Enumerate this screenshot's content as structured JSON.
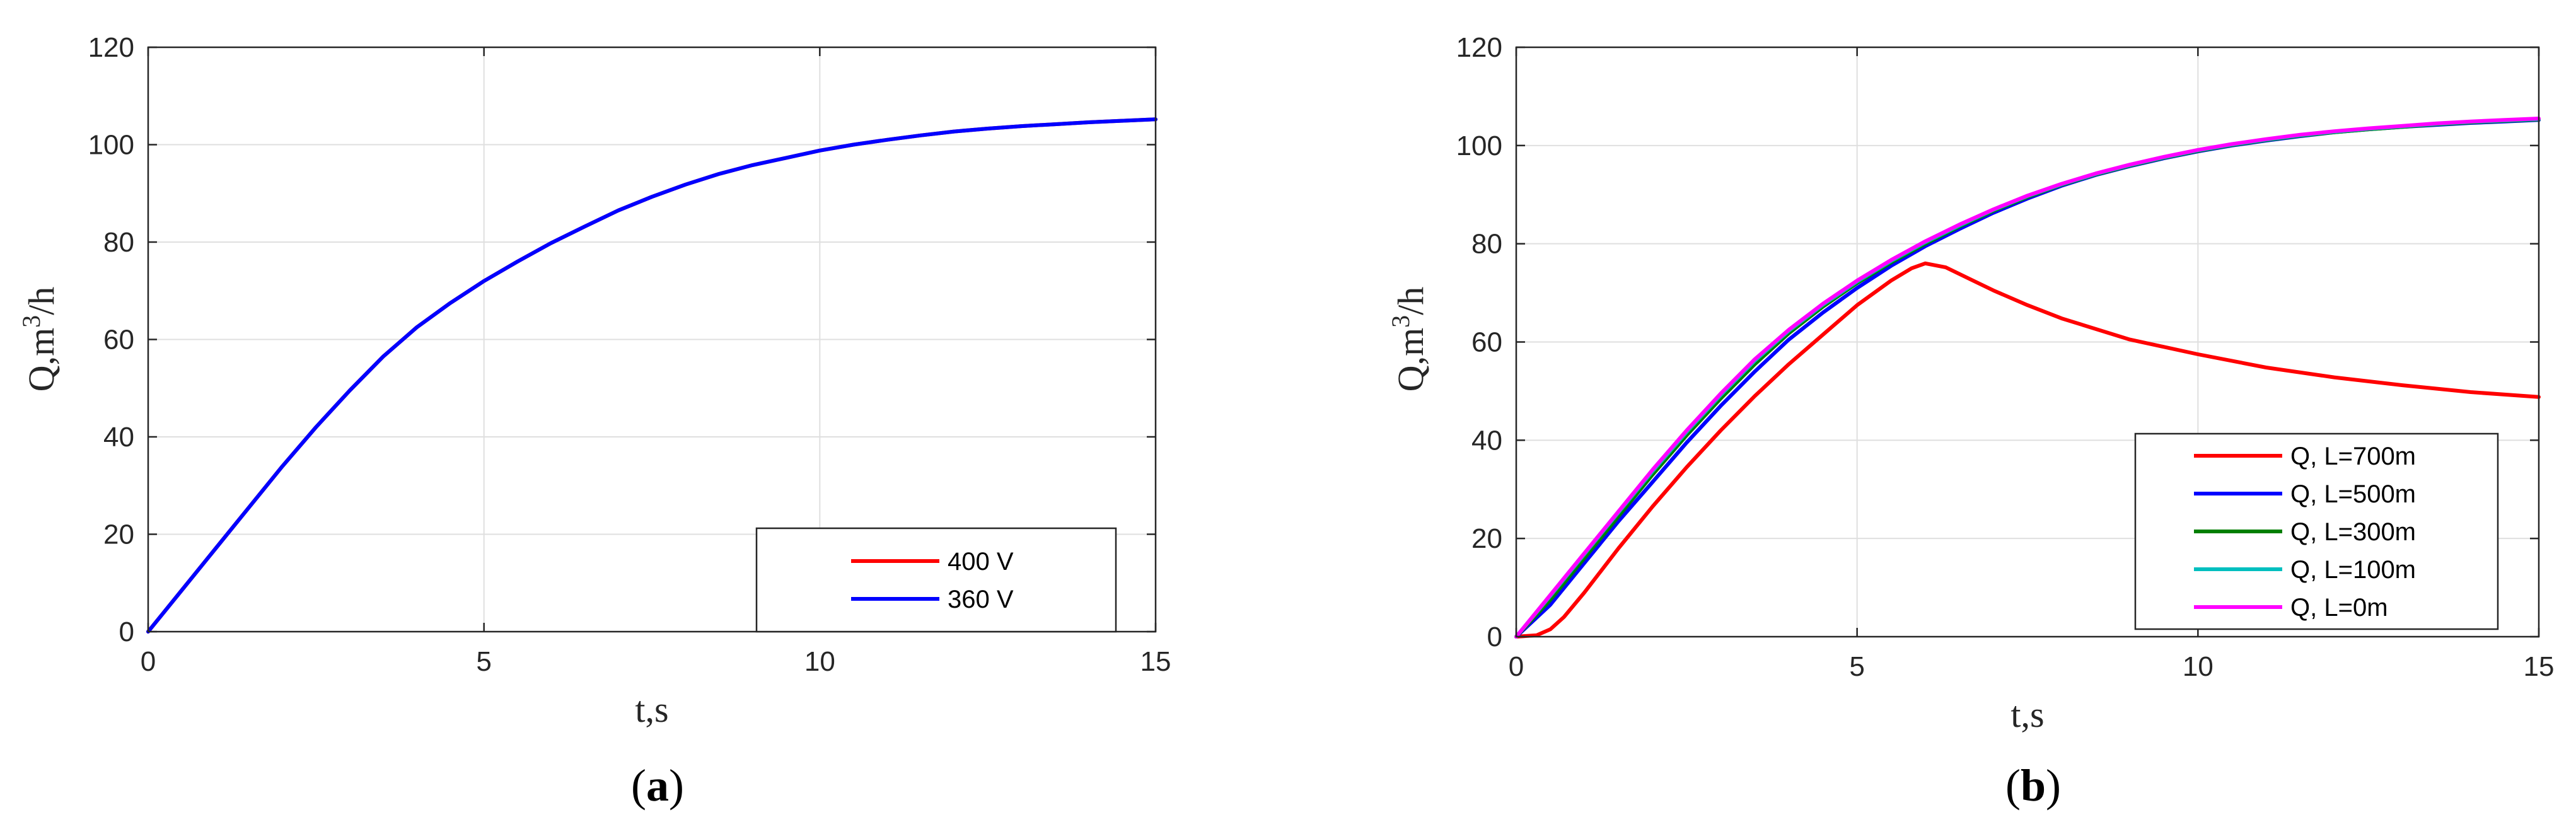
{
  "chart_data": [
    {
      "type": "line",
      "panel": "a",
      "caption_open": "(",
      "caption_letter": "a",
      "caption_close": ")",
      "xlabel": "t,s",
      "ylabel_prefix": "Q,m",
      "ylabel_sup": "3",
      "ylabel_suffix": "/h",
      "xlim": [
        0,
        15
      ],
      "ylim": [
        0,
        120
      ],
      "xticks": [
        0,
        5,
        10,
        15
      ],
      "yticks": [
        0,
        20,
        40,
        60,
        80,
        100,
        120
      ],
      "xtick_labels": [
        "0",
        "5",
        "10",
        "15"
      ],
      "ytick_labels": [
        "0",
        "20",
        "40",
        "60",
        "80",
        "100",
        "120"
      ],
      "grid": true,
      "legend_position": "bottom-right",
      "series": [
        {
          "name": "400 V",
          "color": "#ff0000",
          "x": [
            0,
            0.5,
            1,
            1.5,
            2,
            2.5,
            3,
            3.5,
            4,
            4.5,
            5,
            5.5,
            6,
            6.5,
            7,
            7.5,
            8,
            8.5,
            9,
            9.5,
            10,
            10.5,
            11,
            11.5,
            12,
            12.5,
            13,
            13.5,
            14,
            14.5,
            15
          ],
          "y": [
            0,
            8.5,
            17,
            25.5,
            34,
            42,
            49.5,
            56.5,
            62.5,
            67.5,
            72,
            76,
            79.8,
            83.2,
            86.5,
            89.3,
            91.8,
            94,
            95.8,
            97.3,
            98.8,
            100,
            101,
            101.9,
            102.7,
            103.3,
            103.8,
            104.2,
            104.6,
            104.9,
            105.2
          ]
        },
        {
          "name": "360 V",
          "color": "#0000ff",
          "x": [
            0,
            0.5,
            1,
            1.5,
            2,
            2.5,
            3,
            3.5,
            4,
            4.5,
            5,
            5.5,
            6,
            6.5,
            7,
            7.5,
            8,
            8.5,
            9,
            9.5,
            10,
            10.5,
            11,
            11.5,
            12,
            12.5,
            13,
            13.5,
            14,
            14.5,
            15
          ],
          "y": [
            0,
            8.5,
            17,
            25.5,
            34,
            42,
            49.5,
            56.5,
            62.5,
            67.5,
            72,
            76,
            79.8,
            83.2,
            86.5,
            89.3,
            91.8,
            94,
            95.8,
            97.3,
            98.8,
            100,
            101,
            101.9,
            102.7,
            103.3,
            103.8,
            104.2,
            104.6,
            104.9,
            105.2
          ]
        }
      ]
    },
    {
      "type": "line",
      "panel": "b",
      "caption_open": "(",
      "caption_letter": "b",
      "caption_close": ")",
      "xlabel": "t,s",
      "ylabel_prefix": "Q,m",
      "ylabel_sup": "3",
      "ylabel_suffix": "/h",
      "xlim": [
        0,
        15
      ],
      "ylim": [
        0,
        120
      ],
      "xticks": [
        0,
        5,
        10,
        15
      ],
      "yticks": [
        0,
        20,
        40,
        60,
        80,
        100,
        120
      ],
      "xtick_labels": [
        "0",
        "5",
        "10",
        "15"
      ],
      "ytick_labels": [
        "0",
        "20",
        "40",
        "60",
        "80",
        "100",
        "120"
      ],
      "grid": true,
      "legend_position": "bottom-right",
      "series": [
        {
          "name": "Q, L=700m",
          "color": "#ff0000",
          "x": [
            0,
            0.3,
            0.5,
            0.7,
            1,
            1.5,
            2,
            2.5,
            3,
            3.5,
            4,
            4.5,
            5,
            5.5,
            5.8,
            6,
            6.3,
            6.7,
            7,
            7.5,
            8,
            9,
            10,
            11,
            12,
            13,
            14,
            15
          ],
          "y": [
            0,
            0.3,
            1.5,
            4,
            9,
            18,
            26.5,
            34.5,
            42,
            49,
            55.5,
            61.5,
            67.5,
            72.5,
            75,
            76,
            75.2,
            72.5,
            70.5,
            67.5,
            64.8,
            60.5,
            57.5,
            54.8,
            52.8,
            51.2,
            49.8,
            48.8
          ]
        },
        {
          "name": "Q, L=500m",
          "color": "#0000ff",
          "x": [
            0,
            0.5,
            1,
            1.5,
            2,
            2.5,
            3,
            3.5,
            4,
            4.5,
            5,
            5.5,
            6,
            6.5,
            7,
            7.5,
            8,
            8.5,
            9,
            9.5,
            10,
            10.5,
            11,
            11.5,
            12,
            12.5,
            13,
            13.5,
            14,
            14.5,
            15
          ],
          "y": [
            0,
            6.5,
            15,
            23.5,
            31.5,
            39.5,
            47,
            54,
            60.5,
            66,
            71,
            75.5,
            79.5,
            83,
            86.3,
            89.2,
            91.8,
            94,
            95.8,
            97.4,
            98.8,
            100,
            101,
            101.9,
            102.7,
            103.3,
            103.8,
            104.2,
            104.6,
            104.9,
            105.2
          ]
        },
        {
          "name": "Q, L=300m",
          "color": "#007f00",
          "x": [
            0,
            0.5,
            1,
            1.5,
            2,
            2.5,
            3,
            3.5,
            4,
            4.5,
            5,
            5.5,
            6,
            6.5,
            7,
            7.5,
            8,
            8.5,
            9,
            9.5,
            10,
            10.5,
            11,
            11.5,
            12,
            12.5,
            13,
            13.5,
            14,
            14.5,
            15
          ],
          "y": [
            0,
            7.5,
            16,
            24.5,
            33,
            41,
            48.5,
            55.5,
            61.8,
            67.2,
            72,
            76.2,
            80,
            83.5,
            86.7,
            89.5,
            92,
            94.1,
            95.9,
            97.5,
            98.9,
            100.1,
            101.1,
            102,
            102.7,
            103.3,
            103.8,
            104.3,
            104.7,
            105,
            105.3
          ]
        },
        {
          "name": "Q, L=100m",
          "color": "#00bfbf",
          "x": [
            0,
            0.5,
            1,
            1.5,
            2,
            2.5,
            3,
            3.5,
            4,
            4.5,
            5,
            5.5,
            6,
            6.5,
            7,
            7.5,
            8,
            8.5,
            9,
            9.5,
            10,
            10.5,
            11,
            11.5,
            12,
            12.5,
            13,
            13.5,
            14,
            14.5,
            15
          ],
          "y": [
            0,
            8.3,
            16.8,
            25.3,
            33.7,
            41.7,
            49.2,
            56.2,
            62.3,
            67.6,
            72.3,
            76.5,
            80.3,
            83.7,
            86.9,
            89.7,
            92.1,
            94.2,
            96,
            97.6,
            99,
            100.2,
            101.2,
            102.1,
            102.8,
            103.4,
            103.9,
            104.4,
            104.8,
            105.1,
            105.4
          ]
        },
        {
          "name": "Q, L=0m",
          "color": "#ff00ff",
          "x": [
            0,
            0.5,
            1,
            1.5,
            2,
            2.5,
            3,
            3.5,
            4,
            4.5,
            5,
            5.5,
            6,
            6.5,
            7,
            7.5,
            8,
            8.5,
            9,
            9.5,
            10,
            10.5,
            11,
            11.5,
            12,
            12.5,
            13,
            13.5,
            14,
            14.5,
            15
          ],
          "y": [
            0,
            8.5,
            17,
            25.5,
            34,
            42,
            49.5,
            56.5,
            62.5,
            67.8,
            72.5,
            76.7,
            80.5,
            83.9,
            87,
            89.8,
            92.2,
            94.3,
            96.1,
            97.7,
            99.1,
            100.3,
            101.3,
            102.2,
            102.9,
            103.5,
            104,
            104.5,
            104.9,
            105.2,
            105.5
          ]
        }
      ]
    }
  ]
}
